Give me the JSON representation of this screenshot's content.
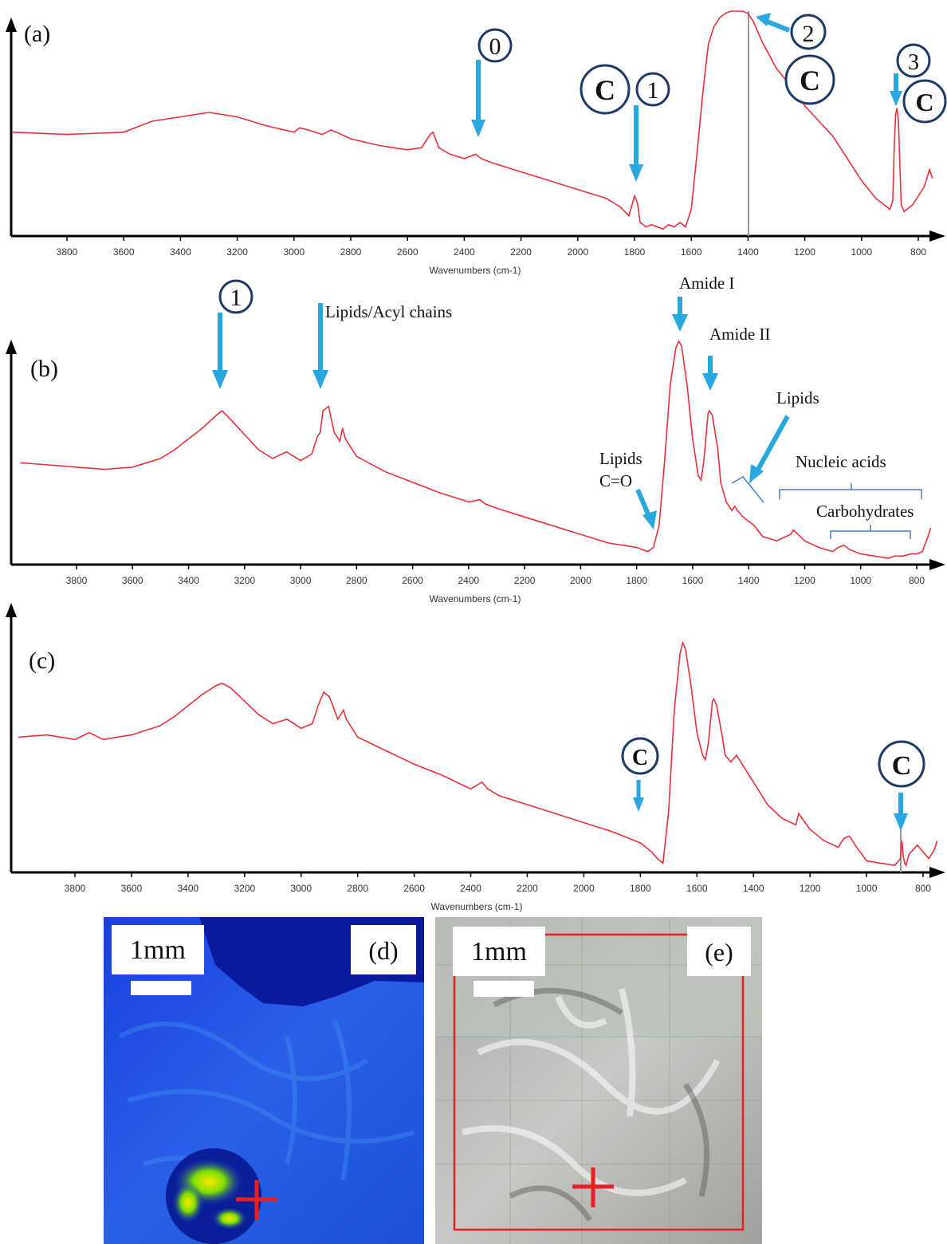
{
  "panels": [
    {
      "label": "(a)",
      "xlabel": "Wavenumbers (cm-1)",
      "ticks": [
        3800,
        3600,
        3400,
        3200,
        3000,
        2800,
        2600,
        2400,
        2200,
        2000,
        1800,
        1600,
        1400,
        1200,
        1000,
        800
      ],
      "circles": [
        {
          "text": "0",
          "kind": "num"
        },
        {
          "text": "C",
          "kind": "c"
        },
        {
          "text": "1",
          "kind": "num"
        },
        {
          "text": "2",
          "kind": "num"
        },
        {
          "text": "C",
          "kind": "c"
        },
        {
          "text": "3",
          "kind": "num"
        },
        {
          "text": "C",
          "kind": "c"
        }
      ]
    },
    {
      "label": "(b)",
      "xlabel": "Wavenumbers (cm-1)",
      "ticks": [
        3800,
        3600,
        3400,
        3200,
        3000,
        2800,
        2600,
        2400,
        2200,
        2000,
        1800,
        1600,
        1400,
        1200,
        1000,
        800
      ],
      "circles": [
        {
          "text": "1",
          "kind": "num"
        }
      ],
      "annotations": {
        "lipids_acyl": "Lipids/Acyl  chains",
        "amide1": "Amide  I",
        "amide2": "Amide  II",
        "lipids": "Lipids",
        "lipids_co_1": "Lipids",
        "lipids_co_2": "C=O",
        "nucleic": "Nucleic  acids",
        "carbo": "Carbohydrates"
      }
    },
    {
      "label": "(c)",
      "xlabel": "Wavenumbers (cm-1)",
      "ticks": [
        3800,
        3600,
        3400,
        3200,
        3000,
        2800,
        2600,
        2400,
        2200,
        2000,
        1800,
        1600,
        1400,
        1200,
        1000,
        800
      ],
      "circles": [
        {
          "text": "C",
          "kind": "c"
        },
        {
          "text": "C",
          "kind": "c"
        }
      ]
    }
  ],
  "images": [
    {
      "label": "(d)",
      "scale": "1mm"
    },
    {
      "label": "(e)",
      "scale": "1mm"
    }
  ],
  "chart_data": [
    {
      "type": "line",
      "panel": "(a)",
      "xlabel": "Wavenumbers (cm-1)",
      "xlim": [
        4000,
        750
      ],
      "x_reversed": true,
      "series": [
        {
          "color": "#e8303a",
          "x": [
            4000,
            3800,
            3600,
            3500,
            3400,
            3300,
            3200,
            3100,
            3000,
            2980,
            2950,
            2900,
            2870,
            2850,
            2800,
            2700,
            2600,
            2550,
            2520,
            2510,
            2490,
            2450,
            2400,
            2360,
            2340,
            2300,
            2200,
            2100,
            2000,
            1900,
            1850,
            1820,
            1800,
            1790,
            1780,
            1760,
            1740,
            1720,
            1700,
            1680,
            1660,
            1640,
            1620,
            1600,
            1580,
            1560,
            1540,
            1520,
            1500,
            1480,
            1460,
            1440,
            1420,
            1400,
            1380,
            1350,
            1300,
            1250,
            1200,
            1150,
            1100,
            1050,
            1000,
            950,
            900,
            890,
            885,
            880,
            875,
            870,
            865,
            860,
            850,
            840,
            820,
            800,
            780,
            760,
            750
          ],
          "y": [
            0.45,
            0.44,
            0.45,
            0.5,
            0.52,
            0.54,
            0.52,
            0.48,
            0.45,
            0.47,
            0.46,
            0.44,
            0.46,
            0.45,
            0.42,
            0.39,
            0.37,
            0.38,
            0.44,
            0.45,
            0.38,
            0.35,
            0.33,
            0.35,
            0.33,
            0.31,
            0.27,
            0.23,
            0.19,
            0.15,
            0.11,
            0.07,
            0.16,
            0.13,
            0.04,
            0.02,
            0.03,
            0.02,
            0.01,
            0.03,
            0.02,
            0.04,
            0.02,
            0.1,
            0.35,
            0.62,
            0.85,
            0.93,
            0.97,
            0.99,
            1.0,
            1.0,
            1.0,
            0.99,
            0.95,
            0.86,
            0.74,
            0.66,
            0.57,
            0.5,
            0.43,
            0.33,
            0.23,
            0.15,
            0.1,
            0.14,
            0.37,
            0.53,
            0.56,
            0.5,
            0.3,
            0.12,
            0.09,
            0.1,
            0.12,
            0.16,
            0.2,
            0.28,
            0.24
          ]
        }
      ]
    },
    {
      "type": "line",
      "panel": "(b)",
      "xlabel": "Wavenumbers (cm-1)",
      "xlim": [
        4000,
        750
      ],
      "x_reversed": true,
      "series": [
        {
          "color": "#e8303a",
          "x": [
            4000,
            3900,
            3800,
            3700,
            3600,
            3500,
            3450,
            3400,
            3350,
            3300,
            3280,
            3250,
            3200,
            3150,
            3100,
            3050,
            3000,
            2960,
            2940,
            2930,
            2920,
            2900,
            2880,
            2870,
            2860,
            2850,
            2840,
            2800,
            2700,
            2600,
            2500,
            2400,
            2360,
            2340,
            2300,
            2200,
            2100,
            2000,
            1900,
            1800,
            1760,
            1740,
            1720,
            1700,
            1680,
            1660,
            1650,
            1640,
            1620,
            1600,
            1580,
            1570,
            1560,
            1545,
            1540,
            1530,
            1510,
            1500,
            1480,
            1460,
            1450,
            1440,
            1420,
            1400,
            1380,
            1350,
            1300,
            1250,
            1240,
            1200,
            1150,
            1100,
            1080,
            1060,
            1040,
            1000,
            950,
            900,
            880,
            850,
            820,
            800,
            780,
            760,
            750
          ],
          "y": [
            0.44,
            0.43,
            0.42,
            0.41,
            0.42,
            0.46,
            0.5,
            0.55,
            0.6,
            0.66,
            0.68,
            0.64,
            0.57,
            0.5,
            0.46,
            0.49,
            0.45,
            0.48,
            0.56,
            0.58,
            0.68,
            0.7,
            0.58,
            0.56,
            0.54,
            0.6,
            0.55,
            0.47,
            0.4,
            0.35,
            0.3,
            0.26,
            0.27,
            0.25,
            0.23,
            0.19,
            0.15,
            0.11,
            0.07,
            0.05,
            0.03,
            0.05,
            0.15,
            0.45,
            0.8,
            0.97,
            1.0,
            0.98,
            0.8,
            0.55,
            0.38,
            0.36,
            0.45,
            0.67,
            0.68,
            0.66,
            0.5,
            0.35,
            0.26,
            0.22,
            0.24,
            0.22,
            0.19,
            0.17,
            0.15,
            0.1,
            0.08,
            0.11,
            0.13,
            0.08,
            0.05,
            0.03,
            0.05,
            0.06,
            0.04,
            0.02,
            0.01,
            0.0,
            0.01,
            0.01,
            0.02,
            0.02,
            0.03,
            0.1,
            0.14
          ]
        }
      ]
    },
    {
      "type": "line",
      "panel": "(c)",
      "xlabel": "Wavenumbers (cm-1)",
      "xlim": [
        4000,
        750
      ],
      "x_reversed": true,
      "series": [
        {
          "color": "#e8303a",
          "x": [
            4000,
            3900,
            3800,
            3750,
            3700,
            3600,
            3500,
            3450,
            3400,
            3350,
            3300,
            3280,
            3250,
            3200,
            3150,
            3100,
            3050,
            3000,
            2960,
            2940,
            2920,
            2900,
            2870,
            2860,
            2850,
            2840,
            2800,
            2700,
            2600,
            2500,
            2400,
            2360,
            2340,
            2300,
            2200,
            2100,
            2000,
            1900,
            1800,
            1760,
            1740,
            1720,
            1700,
            1680,
            1660,
            1650,
            1640,
            1620,
            1600,
            1580,
            1570,
            1560,
            1545,
            1540,
            1530,
            1510,
            1500,
            1480,
            1460,
            1450,
            1440,
            1420,
            1400,
            1380,
            1350,
            1300,
            1250,
            1240,
            1200,
            1150,
            1100,
            1080,
            1060,
            1040,
            1000,
            950,
            900,
            880,
            875,
            870,
            865,
            860,
            850,
            820,
            800,
            780,
            760,
            750
          ],
          "y": [
            0.58,
            0.59,
            0.57,
            0.6,
            0.57,
            0.59,
            0.63,
            0.67,
            0.72,
            0.77,
            0.81,
            0.82,
            0.8,
            0.74,
            0.68,
            0.64,
            0.66,
            0.62,
            0.64,
            0.72,
            0.78,
            0.76,
            0.66,
            0.68,
            0.7,
            0.66,
            0.58,
            0.52,
            0.46,
            0.41,
            0.35,
            0.38,
            0.35,
            0.32,
            0.28,
            0.24,
            0.2,
            0.16,
            0.11,
            0.07,
            0.04,
            0.02,
            0.25,
            0.7,
            0.95,
            1.0,
            0.97,
            0.8,
            0.6,
            0.5,
            0.48,
            0.55,
            0.74,
            0.75,
            0.72,
            0.58,
            0.5,
            0.47,
            0.5,
            0.48,
            0.46,
            0.42,
            0.38,
            0.34,
            0.28,
            0.22,
            0.19,
            0.24,
            0.17,
            0.12,
            0.09,
            0.13,
            0.14,
            0.1,
            0.03,
            0.02,
            0.01,
            0.04,
            0.12,
            0.05,
            0.02,
            0.01,
            0.06,
            0.1,
            0.07,
            0.04,
            0.08,
            0.12
          ]
        }
      ]
    }
  ]
}
